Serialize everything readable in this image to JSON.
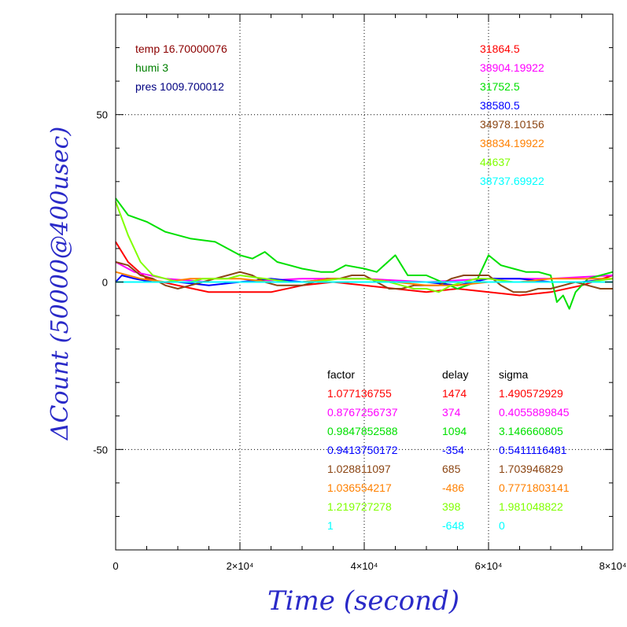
{
  "chart_data": {
    "type": "line",
    "xlabel": "Time (second)",
    "ylabel": "ΔCount (50000@400usec)",
    "xlim": [
      0,
      80000
    ],
    "ylim": [
      -80,
      80
    ],
    "x_ticks": [
      {
        "value": 0,
        "label": "0"
      },
      {
        "value": 20000,
        "label": "2×10⁴"
      },
      {
        "value": 40000,
        "label": "4×10⁴"
      },
      {
        "value": 60000,
        "label": "6×10⁴"
      },
      {
        "value": 80000,
        "label": "8×10⁴"
      }
    ],
    "y_ticks": [
      {
        "value": 50,
        "label": "50"
      },
      {
        "value": 0,
        "label": "0"
      },
      {
        "value": -50,
        "label": "-50"
      }
    ],
    "grid": true,
    "env": [
      {
        "text": "temp 16.70000076",
        "color": "#8b0000"
      },
      {
        "text": "humi 3",
        "color": "#008000"
      },
      {
        "text": "pres 1009.700012",
        "color": "#000080"
      }
    ],
    "series": [
      {
        "color": "#ff0000",
        "base": "31864.5",
        "factor": "1.077136755",
        "delay": "1474",
        "sigma": "1.490572929",
        "points": [
          [
            0,
            12
          ],
          [
            2000,
            6
          ],
          [
            5000,
            1
          ],
          [
            10000,
            -1
          ],
          [
            15000,
            -3
          ],
          [
            20000,
            -3
          ],
          [
            25000,
            -3
          ],
          [
            30000,
            -1
          ],
          [
            35000,
            0
          ],
          [
            40000,
            -1
          ],
          [
            45000,
            -2
          ],
          [
            50000,
            -3
          ],
          [
            55000,
            -2
          ],
          [
            60000,
            -3
          ],
          [
            65000,
            -4
          ],
          [
            70000,
            -3
          ],
          [
            75000,
            -1
          ],
          [
            80000,
            2
          ]
        ]
      },
      {
        "color": "#ff00ff",
        "base": "38904.19922",
        "factor": "0.8767256737",
        "delay": "374",
        "sigma": "0.4055889845",
        "points": [
          [
            0,
            6
          ],
          [
            3000,
            3
          ],
          [
            8000,
            1
          ],
          [
            15000,
            0
          ],
          [
            20000,
            0
          ],
          [
            30000,
            1
          ],
          [
            40000,
            1
          ],
          [
            50000,
            0
          ],
          [
            60000,
            1
          ],
          [
            70000,
            1
          ],
          [
            80000,
            2
          ]
        ]
      },
      {
        "color": "#00e000",
        "base": "31752.5",
        "factor": "0.9847852588",
        "delay": "1094",
        "sigma": "3.146660805",
        "points": [
          [
            0,
            25
          ],
          [
            2000,
            20
          ],
          [
            5000,
            18
          ],
          [
            8000,
            15
          ],
          [
            12000,
            13
          ],
          [
            16000,
            12
          ],
          [
            18000,
            10
          ],
          [
            20000,
            8
          ],
          [
            22000,
            7
          ],
          [
            24000,
            9
          ],
          [
            26000,
            6
          ],
          [
            28000,
            5
          ],
          [
            30000,
            4
          ],
          [
            33000,
            3
          ],
          [
            35000,
            3
          ],
          [
            37000,
            5
          ],
          [
            40000,
            4
          ],
          [
            42000,
            3
          ],
          [
            45000,
            8
          ],
          [
            47000,
            2
          ],
          [
            50000,
            2
          ],
          [
            55000,
            -2
          ],
          [
            58000,
            0
          ],
          [
            60000,
            8
          ],
          [
            62000,
            5
          ],
          [
            64000,
            4
          ],
          [
            66000,
            3
          ],
          [
            68000,
            3
          ],
          [
            70000,
            2
          ],
          [
            71000,
            -6
          ],
          [
            72000,
            -4
          ],
          [
            73000,
            -8
          ],
          [
            74000,
            -3
          ],
          [
            76000,
            1
          ],
          [
            78000,
            2
          ],
          [
            80000,
            3
          ]
        ]
      },
      {
        "color": "#0000ff",
        "base": "38580.5",
        "factor": "0.9413750172",
        "delay": "-354",
        "sigma": "0.5411116481",
        "points": [
          [
            0,
            0
          ],
          [
            1000,
            2
          ],
          [
            3000,
            1
          ],
          [
            6000,
            0
          ],
          [
            10000,
            0
          ],
          [
            15000,
            -1
          ],
          [
            20000,
            0
          ],
          [
            25000,
            1
          ],
          [
            30000,
            0
          ],
          [
            35000,
            1
          ],
          [
            40000,
            1
          ],
          [
            45000,
            0
          ],
          [
            50000,
            0
          ],
          [
            55000,
            -1
          ],
          [
            60000,
            1
          ],
          [
            65000,
            1
          ],
          [
            70000,
            0
          ],
          [
            75000,
            0
          ],
          [
            80000,
            1
          ]
        ]
      },
      {
        "color": "#8b4513",
        "base": "34978.10156",
        "factor": "1.028811097",
        "delay": "685",
        "sigma": "1.703946829",
        "points": [
          [
            0,
            6
          ],
          [
            2000,
            5
          ],
          [
            4000,
            2
          ],
          [
            6000,
            1
          ],
          [
            8000,
            -1
          ],
          [
            10000,
            -2
          ],
          [
            12000,
            -1
          ],
          [
            14000,
            0
          ],
          [
            16000,
            1
          ],
          [
            18000,
            2
          ],
          [
            20000,
            3
          ],
          [
            22000,
            2
          ],
          [
            24000,
            0
          ],
          [
            26000,
            -1
          ],
          [
            28000,
            -1
          ],
          [
            30000,
            -1
          ],
          [
            32000,
            0
          ],
          [
            34000,
            1
          ],
          [
            36000,
            1
          ],
          [
            38000,
            2
          ],
          [
            40000,
            2
          ],
          [
            42000,
            0
          ],
          [
            44000,
            -2
          ],
          [
            46000,
            -2
          ],
          [
            48000,
            -1
          ],
          [
            50000,
            -1
          ],
          [
            52000,
            -1
          ],
          [
            54000,
            1
          ],
          [
            56000,
            2
          ],
          [
            58000,
            2
          ],
          [
            60000,
            2
          ],
          [
            62000,
            -1
          ],
          [
            64000,
            -3
          ],
          [
            66000,
            -3
          ],
          [
            68000,
            -2
          ],
          [
            70000,
            -2
          ],
          [
            72000,
            -1
          ],
          [
            74000,
            0
          ],
          [
            76000,
            -1
          ],
          [
            78000,
            -2
          ],
          [
            80000,
            -2
          ]
        ]
      },
      {
        "color": "#ff8000",
        "base": "38834.19922",
        "factor": "1.036554217",
        "delay": "-486",
        "sigma": "0.7771803141",
        "points": [
          [
            0,
            3
          ],
          [
            4000,
            1
          ],
          [
            8000,
            0
          ],
          [
            12000,
            1
          ],
          [
            16000,
            1
          ],
          [
            20000,
            1
          ],
          [
            25000,
            0
          ],
          [
            30000,
            0
          ],
          [
            35000,
            1
          ],
          [
            40000,
            1
          ],
          [
            45000,
            0
          ],
          [
            50000,
            -1
          ],
          [
            55000,
            -1
          ],
          [
            60000,
            0
          ],
          [
            65000,
            0
          ],
          [
            70000,
            1
          ],
          [
            75000,
            1
          ],
          [
            80000,
            1
          ]
        ]
      },
      {
        "color": "#80ff00",
        "base": "44637",
        "factor": "1.219727278",
        "delay": "398",
        "sigma": "1.981048822",
        "points": [
          [
            0,
            24
          ],
          [
            2000,
            14
          ],
          [
            4000,
            6
          ],
          [
            6000,
            2
          ],
          [
            8000,
            1
          ],
          [
            10000,
            0
          ],
          [
            12000,
            0
          ],
          [
            14000,
            1
          ],
          [
            16000,
            1
          ],
          [
            18000,
            1
          ],
          [
            20000,
            2
          ],
          [
            24000,
            1
          ],
          [
            28000,
            0
          ],
          [
            32000,
            0
          ],
          [
            36000,
            1
          ],
          [
            40000,
            1
          ],
          [
            44000,
            0
          ],
          [
            48000,
            -2
          ],
          [
            50000,
            -2
          ],
          [
            52000,
            -3
          ],
          [
            54000,
            -1
          ],
          [
            56000,
            0
          ],
          [
            58000,
            1
          ],
          [
            60000,
            1
          ],
          [
            64000,
            0
          ],
          [
            68000,
            0
          ],
          [
            72000,
            0
          ],
          [
            76000,
            0
          ],
          [
            80000,
            1
          ]
        ]
      },
      {
        "color": "#00ffff",
        "base": "38737.69922",
        "factor": "1",
        "delay": "-648",
        "sigma": "0",
        "points": [
          [
            0,
            0
          ],
          [
            80000,
            0
          ]
        ]
      }
    ],
    "annotation_headers": {
      "factor": "factor",
      "delay": "delay",
      "sigma": "sigma"
    }
  }
}
